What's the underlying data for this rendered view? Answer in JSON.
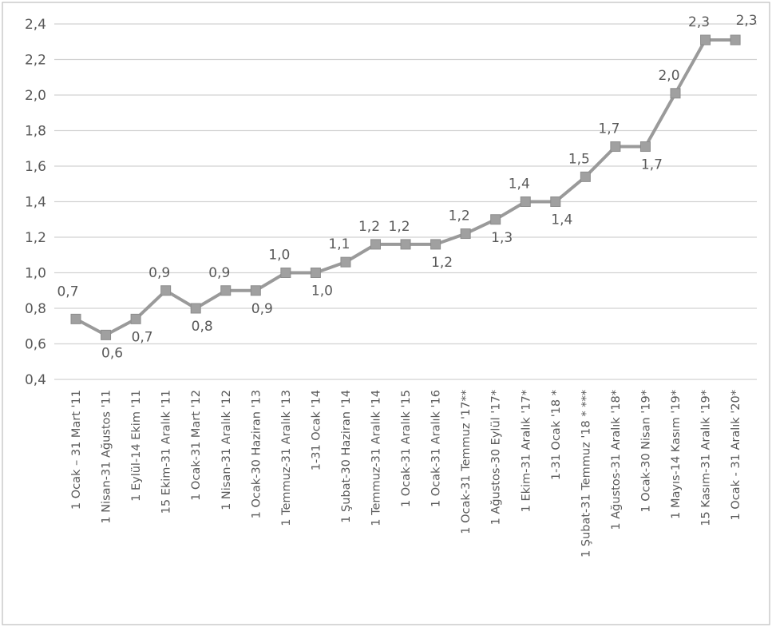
{
  "chart_data": {
    "type": "line",
    "categories": [
      "1 Ocak – 31 Mart '11",
      "1 Nisan-31 Ağustos '11",
      "1 Eylül-14 Ekim '11",
      "15 Ekim-31 Aralık '11",
      "1 Ocak-31 Mart '12",
      "1 Nisan-31 Aralık '12",
      "1 Ocak-30 Haziran '13",
      "1 Temmuz-31 Aralık '13",
      "1-31 Ocak '14",
      "1 Şubat-30 Haziran '14",
      "1 Temmuz-31 Aralık '14",
      "1 Ocak-31 Aralık '15",
      "1 Ocak-31 Aralık '16",
      "1 Ocak-31 Temmuz '17**",
      "1 Ağustos-30 Eylül '17*",
      "1 Ekim-31 Aralık '17*",
      "1-31 Ocak '18 *",
      "1 Şubat-31 Temmuz '18 * ***",
      "1 Ağustos-31 Aralık '18*",
      "1 Ocak-30 Nisan '19*",
      "1 Mayıs-14 Kasım '19*",
      "15 Kasım-31 Aralık '19*",
      "1 Ocak - 31 Aralık '20*"
    ],
    "series": [
      {
        "values": [
          0.74,
          0.65,
          0.74,
          0.9,
          0.8,
          0.9,
          0.9,
          1.0,
          1.0,
          1.06,
          1.16,
          1.16,
          1.16,
          1.22,
          1.3,
          1.4,
          1.4,
          1.54,
          1.71,
          1.71,
          2.01,
          2.31,
          2.31
        ],
        "labels": [
          "0,7",
          "0,6",
          "0,7",
          "0,9",
          "0,8",
          "0,9",
          "0,9",
          "1,0",
          "1,0",
          "1,1",
          "1,2",
          "1,2",
          "1,2",
          "1,2",
          "1,3",
          "1,4",
          "1,4",
          "1,5",
          "1,7",
          "1,7",
          "2,0",
          "2,3",
          "2,3"
        ]
      }
    ],
    "yticks": [
      "2,4",
      "2,2",
      "2,0",
      "1,8",
      "1,6",
      "1,4",
      "1,2",
      "1,0",
      "0,8",
      "0,6",
      "0,4"
    ],
    "ylim": [
      0.4,
      2.4
    ],
    "title": "",
    "xlabel": "",
    "ylabel": "",
    "grid": true,
    "legend": "none",
    "colors": {
      "line": "#9a9a9a",
      "marker": "#a0a0a0",
      "grid": "#d2d2d2",
      "text": "#595959"
    }
  }
}
